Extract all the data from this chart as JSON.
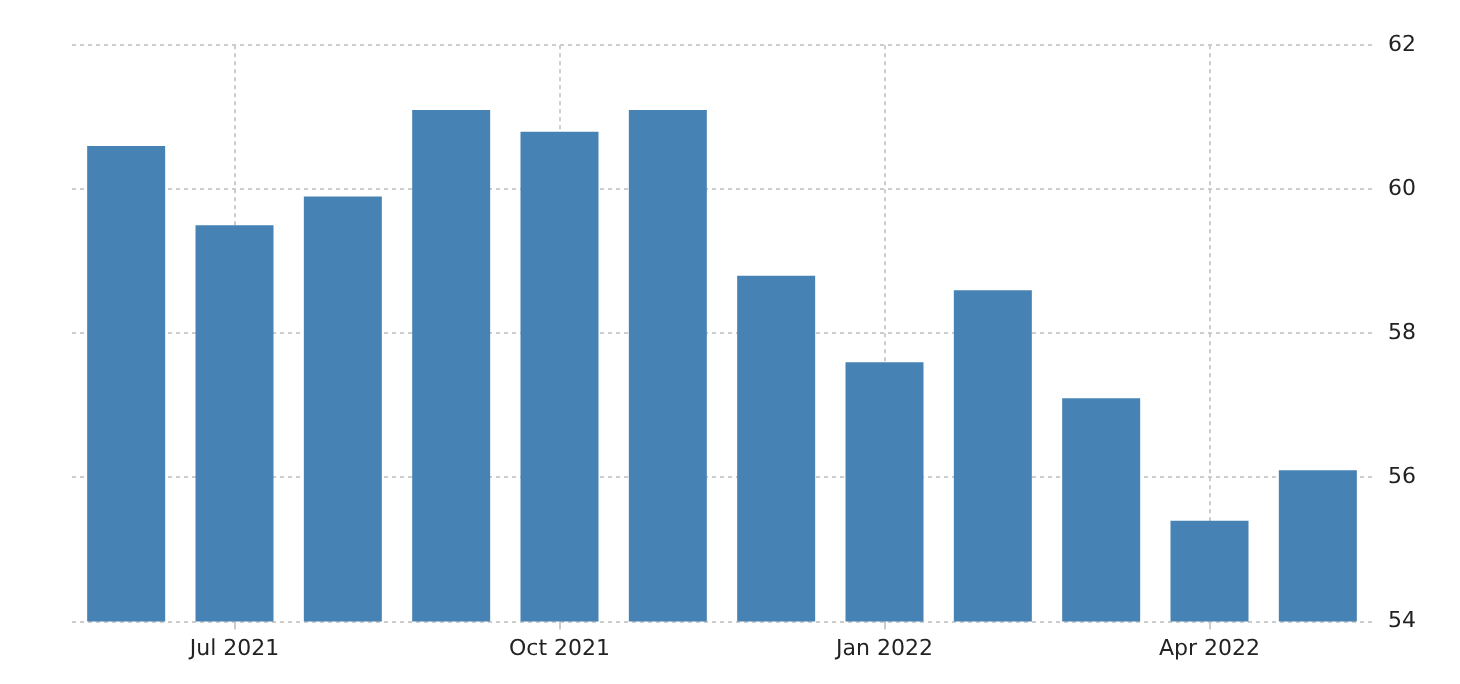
{
  "chart_data": {
    "type": "bar",
    "categories": [
      null,
      "Jul 2021",
      null,
      null,
      "Oct 2021",
      null,
      null,
      "Jan 2022",
      null,
      null,
      "Apr 2022",
      null
    ],
    "values": [
      60.6,
      59.5,
      59.9,
      61.1,
      60.8,
      61.1,
      58.8,
      57.6,
      58.6,
      57.1,
      55.4,
      56.1
    ],
    "color": "#4682b4",
    "ylim": [
      54,
      62
    ],
    "yticks": [
      54,
      56,
      58,
      60,
      62
    ],
    "grid": true,
    "legend": false
  }
}
